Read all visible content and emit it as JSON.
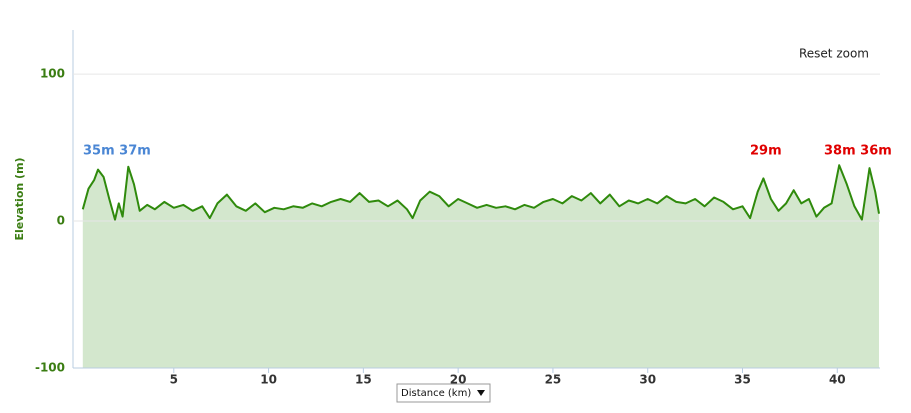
{
  "chart_data": {
    "type": "area",
    "y_label": "Elevation (m)",
    "x_label": "Distance (km)",
    "reset_button": "Reset zoom",
    "line_color": "#2f8a0c",
    "fill_color": "#d3e7cd",
    "xlim": [
      0,
      42.2
    ],
    "ylim": [
      -100,
      130
    ],
    "xticks": [
      5,
      10,
      15,
      20,
      25,
      30,
      35,
      40
    ],
    "yticks": [
      -100,
      0,
      100
    ],
    "grid": true,
    "annotations": [
      {
        "text": "35m 37m",
        "color": "#4a86d4"
      },
      {
        "text": "29m",
        "color": "#e00000"
      },
      {
        "text": "38m 36m",
        "color": "#e00000"
      }
    ],
    "x": [
      0.2,
      0.5,
      0.8,
      1.0,
      1.3,
      1.6,
      1.9,
      2.1,
      2.3,
      2.6,
      2.9,
      3.2,
      3.6,
      4.0,
      4.5,
      5.0,
      5.5,
      6.0,
      6.5,
      6.9,
      7.3,
      7.8,
      8.3,
      8.8,
      9.3,
      9.8,
      10.3,
      10.8,
      11.3,
      11.8,
      12.3,
      12.8,
      13.3,
      13.8,
      14.3,
      14.8,
      15.3,
      15.8,
      16.3,
      16.8,
      17.3,
      17.6,
      18.0,
      18.5,
      19.0,
      19.5,
      20.0,
      20.5,
      21.0,
      21.5,
      22.0,
      22.5,
      23.0,
      23.5,
      24.0,
      24.5,
      25.0,
      25.5,
      26.0,
      26.5,
      27.0,
      27.5,
      28.0,
      28.5,
      29.0,
      29.5,
      30.0,
      30.5,
      31.0,
      31.5,
      32.0,
      32.5,
      33.0,
      33.5,
      34.0,
      34.5,
      35.0,
      35.4,
      35.8,
      36.1,
      36.5,
      36.9,
      37.3,
      37.7,
      38.1,
      38.5,
      38.9,
      39.3,
      39.7,
      40.1,
      40.5,
      40.9,
      41.3,
      41.7,
      42.0,
      42.2
    ],
    "values": [
      8,
      22,
      28,
      35,
      30,
      15,
      1,
      12,
      3,
      37,
      25,
      7,
      11,
      8,
      13,
      9,
      11,
      7,
      10,
      2,
      12,
      18,
      10,
      7,
      12,
      6,
      9,
      8,
      10,
      9,
      12,
      10,
      13,
      15,
      13,
      19,
      13,
      14,
      10,
      14,
      8,
      2,
      14,
      20,
      17,
      10,
      15,
      12,
      9,
      11,
      9,
      10,
      8,
      11,
      9,
      13,
      15,
      12,
      17,
      14,
      19,
      12,
      18,
      10,
      14,
      12,
      15,
      12,
      17,
      13,
      12,
      15,
      10,
      16,
      13,
      8,
      10,
      2,
      20,
      29,
      15,
      7,
      12,
      21,
      12,
      15,
      3,
      9,
      12,
      38,
      25,
      10,
      1,
      36,
      20,
      5
    ]
  }
}
